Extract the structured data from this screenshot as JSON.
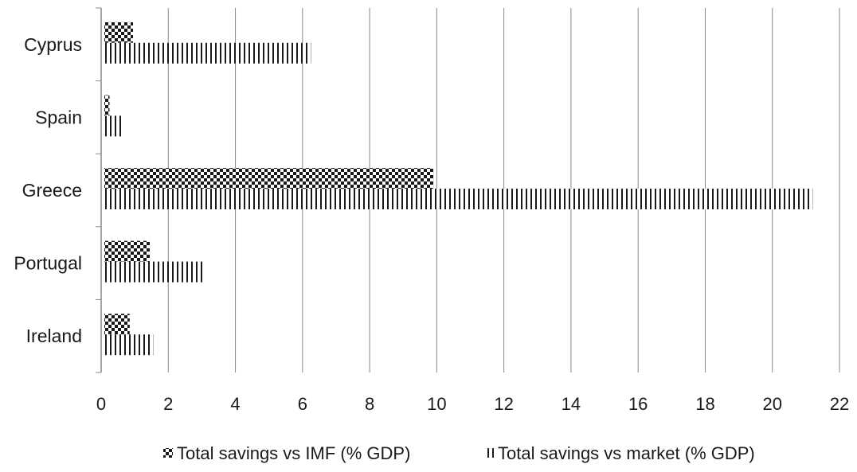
{
  "chart_data": {
    "type": "bar",
    "orientation": "horizontal",
    "categories": [
      "Cyprus",
      "Spain",
      "Greece",
      "Portugal",
      "Ireland"
    ],
    "series": [
      {
        "name": "Total savings vs IMF (% GDP)",
        "pattern": "checkerboard",
        "values": [
          0.95,
          0.25,
          9.9,
          1.45,
          0.85
        ]
      },
      {
        "name": "Total savings vs market (% GDP)",
        "pattern": "vertical-lines",
        "values": [
          6.25,
          0.65,
          21.2,
          3.1,
          1.55
        ]
      }
    ],
    "xlim": [
      0,
      22
    ],
    "xticks": [
      0,
      2,
      4,
      6,
      8,
      10,
      12,
      14,
      16,
      18,
      20,
      22
    ],
    "grid": true,
    "legend_position": "bottom",
    "title": "",
    "xlabel": "",
    "ylabel": ""
  },
  "colors": {
    "bar_ink": "#1a1a1a",
    "gridline": "#888888",
    "axis": "#888888"
  }
}
